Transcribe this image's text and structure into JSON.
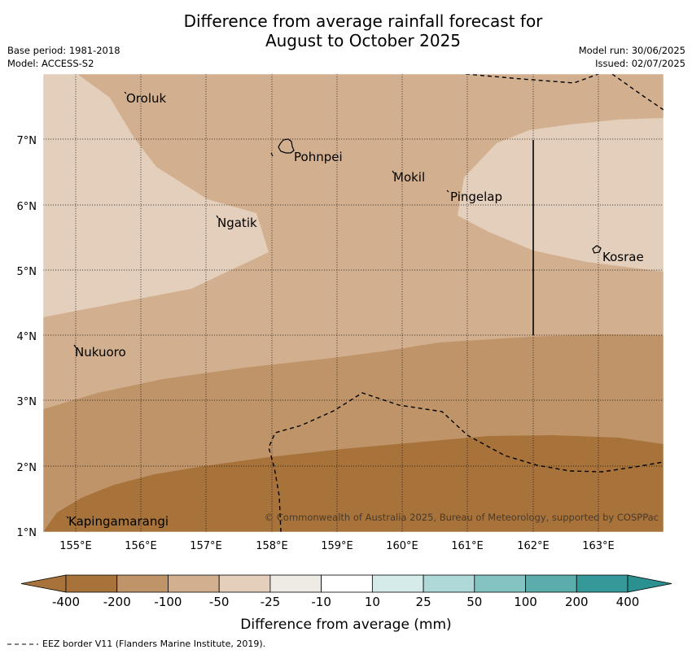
{
  "title_line1": "Difference from average rainfall forecast for",
  "title_line2": "August to October 2025",
  "info": {
    "base_period": "Base period: 1981-2018",
    "model": "Model: ACCESS-S2",
    "model_run": "Model run: 30/06/2025",
    "issued": "Issued: 02/07/2025"
  },
  "lat_labels": [
    "7°N",
    "6°N",
    "5°N",
    "4°N",
    "3°N",
    "2°N",
    "1°N"
  ],
  "lon_labels": [
    "155°E",
    "156°E",
    "157°E",
    "158°E",
    "159°E",
    "160°E",
    "161°E",
    "162°E",
    "163°E"
  ],
  "places": [
    "Oroluk",
    "Pohnpei",
    "Mokil",
    "Pingelap",
    "Ngatik",
    "Kosrae",
    "Nukuoro",
    "Kapingamarangi"
  ],
  "copyright": "© Commonwealth of Australia 2025, Bureau of Meteorology, supported by COSPPac",
  "colorbar": {
    "ticks": [
      "-400",
      "-200",
      "-100",
      "-50",
      "-25",
      "-10",
      "10",
      "25",
      "50",
      "100",
      "200",
      "400"
    ],
    "colors": [
      "#a8733a",
      "#a8733a",
      "#bf9469",
      "#d2b08f",
      "#e3cfbb",
      "#eeeae4",
      "#ffffff",
      "#d5ebea",
      "#aed9d8",
      "#83c4c2",
      "#5aadab",
      "#35999a",
      "#2a9090"
    ],
    "label": "Difference from average (mm)"
  },
  "legend_note": "EEZ border V11 (Flanders Marine Institute, 2019)."
}
